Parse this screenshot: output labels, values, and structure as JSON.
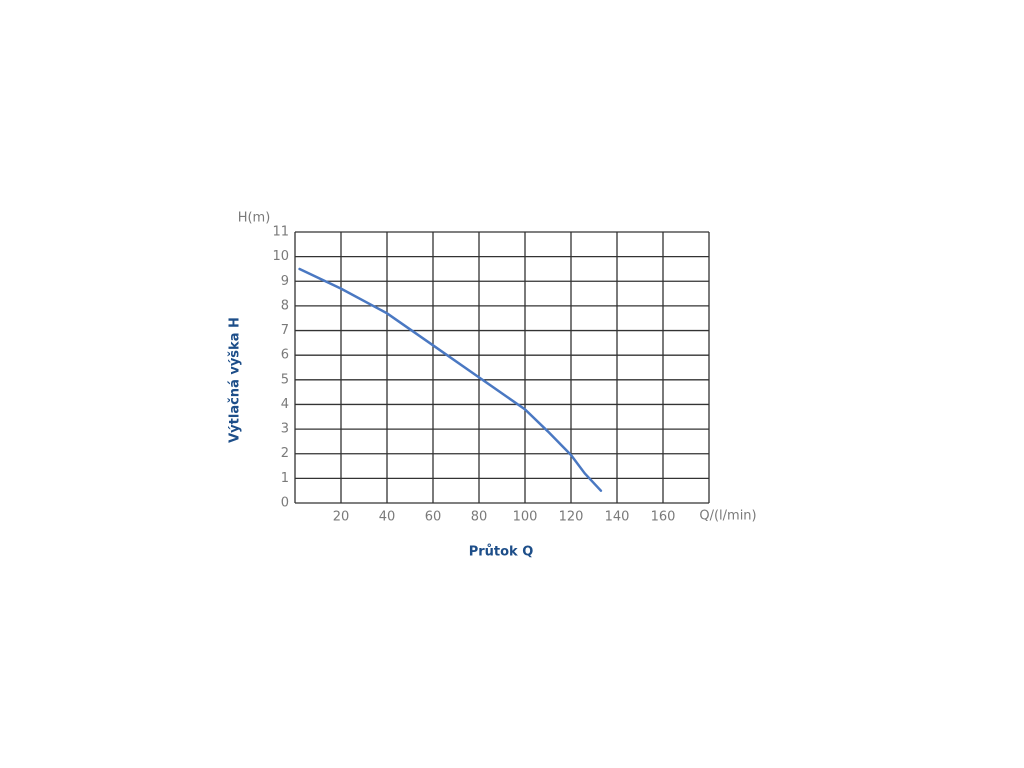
{
  "chart_data": {
    "type": "line",
    "ylabel_top": "H(m)",
    "xlabel_end": "Q/(l/min)",
    "ylabel": "Výtlačná výška H",
    "xlabel": "Průtok Q",
    "x": [
      2,
      20,
      40,
      60,
      80,
      100,
      110,
      120,
      126,
      133
    ],
    "series": [
      {
        "color": "#4a78c2",
        "values": [
          9.5,
          8.7,
          7.7,
          6.4,
          5.1,
          3.8,
          2.9,
          1.95,
          1.2,
          0.5
        ]
      }
    ],
    "xlim": [
      0,
      180
    ],
    "xticks": [
      20,
      40,
      60,
      80,
      100,
      120,
      140,
      160
    ],
    "ylim": [
      0,
      11
    ],
    "yticks": [
      0,
      1,
      2,
      3,
      4,
      5,
      6,
      7,
      8,
      9,
      10,
      11
    ],
    "grid": true
  }
}
